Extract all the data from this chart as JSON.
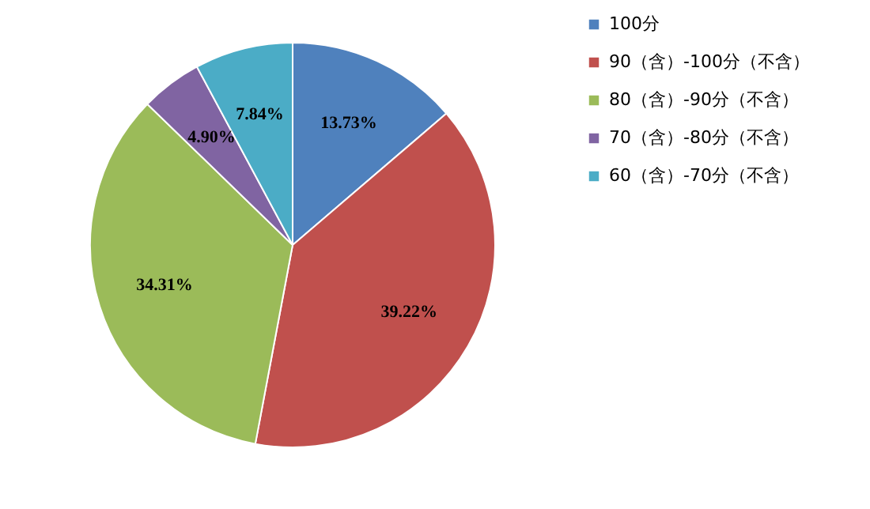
{
  "chart_data": {
    "type": "pie",
    "categories": [
      "100分",
      "90（含）-100分（不含）",
      "80（含）-90分（不含）",
      "70（含）-80分（不含）",
      "60（含）-70分（不含）"
    ],
    "values": [
      13.73,
      39.22,
      34.31,
      4.9,
      7.84
    ],
    "colors": [
      "#4f81bd",
      "#c0504d",
      "#9bbb59",
      "#8064a2",
      "#4bacc6"
    ],
    "value_labels": [
      "13.73%",
      "39.22%",
      "34.31%",
      "4.90%",
      "7.84%"
    ],
    "legend": "right"
  }
}
